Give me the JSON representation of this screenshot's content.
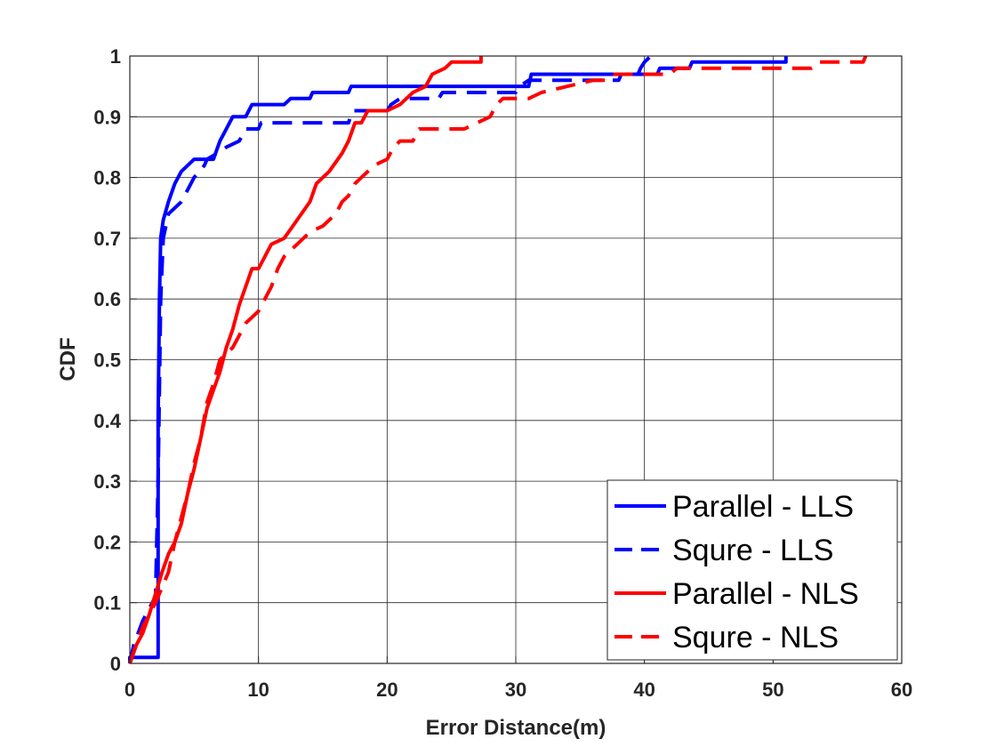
{
  "chart_data": {
    "type": "line",
    "xlabel": "Error Distance(m)",
    "ylabel": "CDF",
    "xlim": [
      0,
      60
    ],
    "ylim": [
      0,
      1
    ],
    "xticks": [
      "0",
      "10",
      "20",
      "30",
      "40",
      "50",
      "60"
    ],
    "yticks": [
      "0",
      "0.1",
      "0.2",
      "0.3",
      "0.4",
      "0.5",
      "0.6",
      "0.7",
      "0.8",
      "0.9",
      "1"
    ],
    "grid": true,
    "legend_position": "bottom-right",
    "series": [
      {
        "name": "Parallel - LLS",
        "color": "#0000ff",
        "dash": "solid",
        "points": [
          [
            0,
            0
          ],
          [
            0,
            0.01
          ],
          [
            2.2,
            0.01
          ],
          [
            2.2,
            0.4
          ],
          [
            2.3,
            0.6
          ],
          [
            2.4,
            0.7
          ],
          [
            2.6,
            0.73
          ],
          [
            3,
            0.76
          ],
          [
            3.5,
            0.79
          ],
          [
            4,
            0.81
          ],
          [
            4.5,
            0.82
          ],
          [
            5,
            0.83
          ],
          [
            6.5,
            0.83
          ],
          [
            7,
            0.86
          ],
          [
            7.5,
            0.88
          ],
          [
            8,
            0.9
          ],
          [
            9,
            0.9
          ],
          [
            9.5,
            0.92
          ],
          [
            12,
            0.92
          ],
          [
            12.5,
            0.93
          ],
          [
            14,
            0.93
          ],
          [
            14.2,
            0.94
          ],
          [
            17,
            0.94
          ],
          [
            17.2,
            0.95
          ],
          [
            31,
            0.95
          ],
          [
            31.2,
            0.97
          ],
          [
            41,
            0.97
          ],
          [
            41.2,
            0.98
          ],
          [
            43.5,
            0.98
          ],
          [
            43.7,
            0.99
          ],
          [
            51,
            0.99
          ],
          [
            51,
            1
          ]
        ]
      },
      {
        "name": "Squre - LLS",
        "color": "#0000ff",
        "dash": "dashed",
        "points": [
          [
            0,
            0
          ],
          [
            0.3,
            0.03
          ],
          [
            1,
            0.07
          ],
          [
            2,
            0.11
          ],
          [
            2.2,
            0.3
          ],
          [
            2.4,
            0.6
          ],
          [
            2.6,
            0.7
          ],
          [
            3,
            0.74
          ],
          [
            4,
            0.76
          ],
          [
            4.5,
            0.78
          ],
          [
            5,
            0.8
          ],
          [
            5.8,
            0.82
          ],
          [
            6,
            0.83
          ],
          [
            6.8,
            0.84
          ],
          [
            7.5,
            0.85
          ],
          [
            8.5,
            0.86
          ],
          [
            9,
            0.88
          ],
          [
            10,
            0.88
          ],
          [
            10.2,
            0.89
          ],
          [
            17,
            0.89
          ],
          [
            17.3,
            0.91
          ],
          [
            20,
            0.91
          ],
          [
            20.3,
            0.92
          ],
          [
            21,
            0.93
          ],
          [
            24,
            0.93
          ],
          [
            24.3,
            0.94
          ],
          [
            30,
            0.94
          ],
          [
            30.3,
            0.95
          ],
          [
            31,
            0.96
          ],
          [
            38,
            0.96
          ],
          [
            38.2,
            0.97
          ],
          [
            39.5,
            0.97
          ],
          [
            39.7,
            0.98
          ],
          [
            40,
            0.99
          ],
          [
            40.5,
            1
          ]
        ]
      },
      {
        "name": "Parallel - NLS",
        "color": "#ff0000",
        "dash": "solid",
        "points": [
          [
            0,
            0
          ],
          [
            0.5,
            0.03
          ],
          [
            1,
            0.05
          ],
          [
            1.5,
            0.08
          ],
          [
            2.5,
            0.15
          ],
          [
            3,
            0.18
          ],
          [
            3.5,
            0.2
          ],
          [
            4,
            0.23
          ],
          [
            4.5,
            0.28
          ],
          [
            5,
            0.32
          ],
          [
            5.5,
            0.37
          ],
          [
            6,
            0.42
          ],
          [
            6.5,
            0.45
          ],
          [
            7,
            0.48
          ],
          [
            7.5,
            0.52
          ],
          [
            8,
            0.55
          ],
          [
            8.5,
            0.59
          ],
          [
            9,
            0.62
          ],
          [
            9.5,
            0.65
          ],
          [
            10,
            0.65
          ],
          [
            10.5,
            0.67
          ],
          [
            11,
            0.69
          ],
          [
            12,
            0.7
          ],
          [
            13,
            0.73
          ],
          [
            14,
            0.76
          ],
          [
            14.5,
            0.79
          ],
          [
            15.5,
            0.81
          ],
          [
            16.5,
            0.84
          ],
          [
            17,
            0.86
          ],
          [
            17.5,
            0.89
          ],
          [
            18,
            0.89
          ],
          [
            18.5,
            0.91
          ],
          [
            20,
            0.91
          ],
          [
            21,
            0.92
          ],
          [
            22,
            0.94
          ],
          [
            23,
            0.95
          ],
          [
            23.5,
            0.97
          ],
          [
            24.5,
            0.98
          ],
          [
            25,
            0.99
          ],
          [
            27.3,
            0.99
          ],
          [
            27.3,
            1
          ]
        ]
      },
      {
        "name": "Squre - NLS",
        "color": "#ff0000",
        "dash": "dashed",
        "points": [
          [
            0,
            0
          ],
          [
            0.5,
            0.03
          ],
          [
            1,
            0.06
          ],
          [
            2,
            0.1
          ],
          [
            3,
            0.15
          ],
          [
            3.5,
            0.2
          ],
          [
            4.5,
            0.28
          ],
          [
            5,
            0.33
          ],
          [
            5.5,
            0.37
          ],
          [
            6,
            0.43
          ],
          [
            6.5,
            0.46
          ],
          [
            7,
            0.5
          ],
          [
            8,
            0.52
          ],
          [
            8.5,
            0.54
          ],
          [
            9,
            0.56
          ],
          [
            10,
            0.58
          ],
          [
            10.5,
            0.6
          ],
          [
            11,
            0.62
          ],
          [
            11.5,
            0.65
          ],
          [
            12,
            0.67
          ],
          [
            13,
            0.69
          ],
          [
            14,
            0.71
          ],
          [
            15,
            0.72
          ],
          [
            16,
            0.74
          ],
          [
            16.5,
            0.76
          ],
          [
            17,
            0.77
          ],
          [
            17.5,
            0.79
          ],
          [
            18,
            0.8
          ],
          [
            19,
            0.82
          ],
          [
            20,
            0.83
          ],
          [
            20.5,
            0.85
          ],
          [
            21,
            0.86
          ],
          [
            22,
            0.86
          ],
          [
            22.5,
            0.88
          ],
          [
            26,
            0.88
          ],
          [
            27,
            0.89
          ],
          [
            28,
            0.9
          ],
          [
            28.5,
            0.92
          ],
          [
            29,
            0.93
          ],
          [
            31,
            0.93
          ],
          [
            32,
            0.94
          ],
          [
            34,
            0.95
          ],
          [
            36,
            0.96
          ],
          [
            37,
            0.96
          ],
          [
            37.5,
            0.97
          ],
          [
            42,
            0.97
          ],
          [
            42.5,
            0.98
          ],
          [
            53,
            0.98
          ],
          [
            53.5,
            0.99
          ],
          [
            57,
            0.99
          ],
          [
            57.2,
            1
          ]
        ]
      }
    ]
  }
}
